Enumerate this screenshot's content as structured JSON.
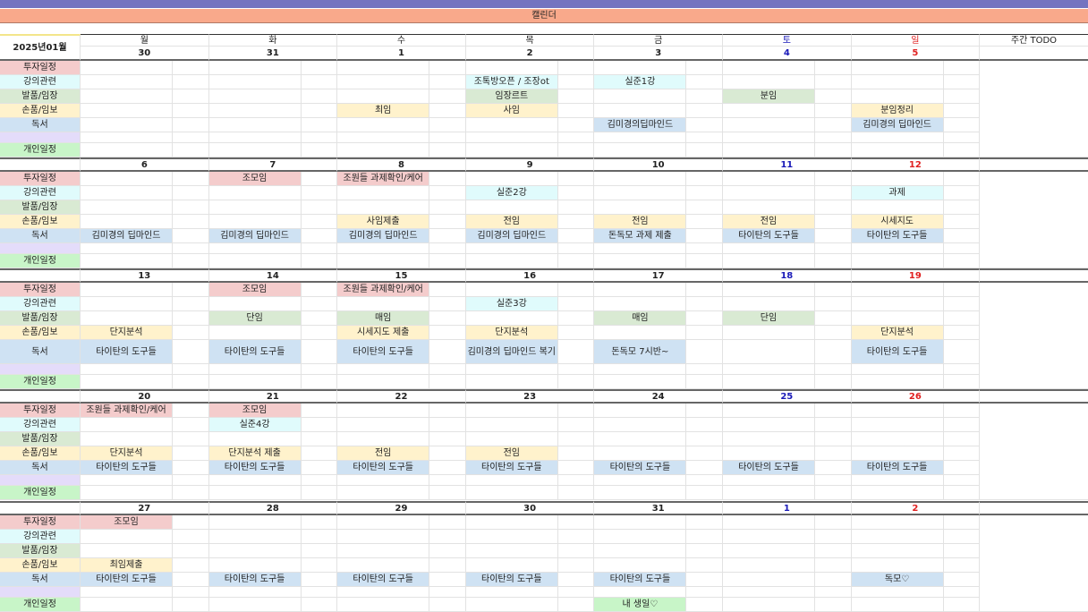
{
  "banner": "캘린더",
  "month_label": "2025년01월",
  "weekdays": [
    "월",
    "화",
    "수",
    "목",
    "금",
    "토",
    "일"
  ],
  "todo_header": "주간 TODO",
  "colors": {
    "topbar": "#7474c0",
    "banner": "#f9a98b",
    "saturday": "#1a1ab8",
    "sunday": "#e02020",
    "categories": [
      "#f4cccc",
      "#e0fbfc",
      "#d9ead3",
      "#fff2cc",
      "#cfe2f3",
      "#e4dcfa",
      "#c8f5c8"
    ]
  },
  "categories": [
    "투자일정",
    "강의관련",
    "발품/임장",
    "손품/임보",
    "독서",
    "",
    "개인일정"
  ],
  "weeks": [
    {
      "dates": [
        "30",
        "31",
        "1",
        "2",
        "3",
        "4",
        "5"
      ],
      "rows": [
        [
          "",
          "",
          "",
          "",
          "",
          "",
          ""
        ],
        [
          "",
          "",
          "",
          "조톡방오픈 / 조장ot",
          "실준1강",
          "",
          ""
        ],
        [
          "",
          "",
          "",
          "임장르트",
          "",
          "분임",
          ""
        ],
        [
          "",
          "",
          "최임",
          "사임",
          "",
          "",
          "분임정리"
        ],
        [
          "",
          "",
          "",
          "",
          "김미경의딥마인드",
          "",
          "김미경의 딥마인드"
        ],
        [
          "",
          "",
          "",
          "",
          "",
          "",
          ""
        ],
        [
          "",
          "",
          "",
          "",
          "",
          "",
          ""
        ]
      ]
    },
    {
      "dates": [
        "6",
        "7",
        "8",
        "9",
        "10",
        "11",
        "12"
      ],
      "rows": [
        [
          "",
          "조모임",
          "조원들 과제확인/케어",
          "",
          "",
          "",
          ""
        ],
        [
          "",
          "",
          "",
          "실준2강",
          "",
          "",
          "과제"
        ],
        [
          "",
          "",
          "",
          "",
          "",
          "",
          ""
        ],
        [
          "",
          "",
          "사임제출",
          "전임",
          "전임",
          "전임",
          "시세지도"
        ],
        [
          "김미경의 딥마인드",
          "김미경의 딥마인드",
          "김미경의 딥마인드",
          "김미경의 딥마인드",
          "돈독모 과제 제출",
          "타이탄의 도구들",
          "타이탄의 도구들"
        ],
        [
          "",
          "",
          "",
          "",
          "",
          "",
          ""
        ],
        [
          "",
          "",
          "",
          "",
          "",
          "",
          ""
        ]
      ]
    },
    {
      "dates": [
        "13",
        "14",
        "15",
        "16",
        "17",
        "18",
        "19"
      ],
      "rows": [
        [
          "",
          "조모임",
          "조원들 과제확인/케어",
          "",
          "",
          "",
          ""
        ],
        [
          "",
          "",
          "",
          "실준3강",
          "",
          "",
          ""
        ],
        [
          "",
          "단임",
          "매임",
          "",
          "매임",
          "단임",
          ""
        ],
        [
          "단지분석",
          "",
          "시세지도 제출",
          "단지분석",
          "",
          "",
          "단지분석"
        ],
        [
          "타이탄의 도구들",
          "타이탄의 도구들",
          "타이탄의 도구들",
          "김미경의 딥마인드 복기",
          "돈독모 7시반~",
          "",
          "타이탄의 도구들"
        ],
        [
          "",
          "",
          "",
          "",
          "",
          "",
          ""
        ],
        [
          "",
          "",
          "",
          "",
          "",
          "",
          ""
        ]
      ]
    },
    {
      "dates": [
        "20",
        "21",
        "22",
        "23",
        "24",
        "25",
        "26"
      ],
      "rows": [
        [
          "조원들 과제확인/케어",
          "조모임",
          "",
          "",
          "",
          "",
          ""
        ],
        [
          "",
          "실준4강",
          "",
          "",
          "",
          "",
          ""
        ],
        [
          "",
          "",
          "",
          "",
          "",
          "",
          ""
        ],
        [
          "단지분석",
          "단지분석 제출",
          "전임",
          "전임",
          "",
          "",
          ""
        ],
        [
          "타이탄의 도구들",
          "타이탄의 도구들",
          "타이탄의 도구들",
          "타이탄의 도구들",
          "타이탄의 도구들",
          "타이탄의 도구들",
          "타이탄의 도구들"
        ],
        [
          "",
          "",
          "",
          "",
          "",
          "",
          ""
        ],
        [
          "",
          "",
          "",
          "",
          "",
          "",
          ""
        ]
      ]
    },
    {
      "dates": [
        "27",
        "28",
        "29",
        "30",
        "31",
        "1",
        "2"
      ],
      "rows": [
        [
          "조모임",
          "",
          "",
          "",
          "",
          "",
          ""
        ],
        [
          "",
          "",
          "",
          "",
          "",
          "",
          ""
        ],
        [
          "",
          "",
          "",
          "",
          "",
          "",
          ""
        ],
        [
          "최임제출",
          "",
          "",
          "",
          "",
          "",
          ""
        ],
        [
          "타이탄의 도구들",
          "타이탄의 도구들",
          "타이탄의 도구들",
          "타이탄의 도구들",
          "타이탄의 도구들",
          "",
          "독모♡"
        ],
        [
          "",
          "",
          "",
          "",
          "",
          "",
          ""
        ],
        [
          "",
          "",
          "",
          "",
          "내 생일♡",
          "",
          ""
        ]
      ]
    }
  ]
}
